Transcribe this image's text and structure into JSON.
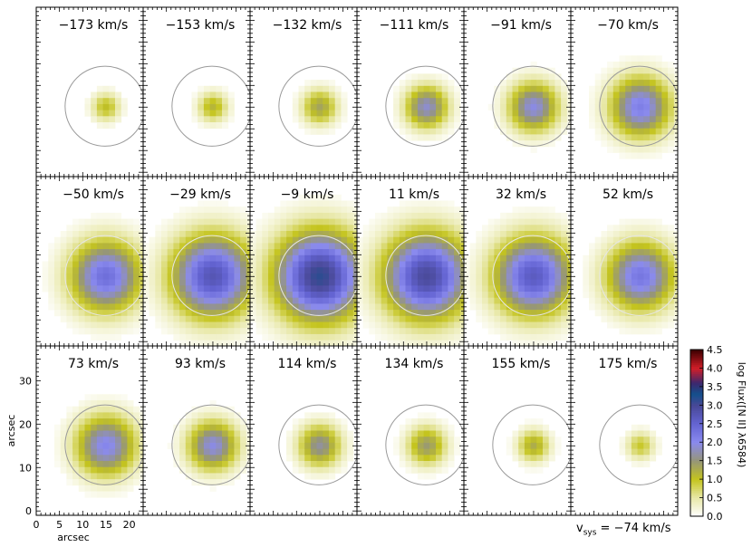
{
  "chart_data": {
    "type": "heatmap",
    "title": "",
    "panel_velocities": [
      "−173 km/s",
      "−153 km/s",
      "−132 km/s",
      "−111 km/s",
      "−91 km/s",
      "−70 km/s",
      "−50 km/s",
      "−29 km/s",
      "−9 km/s",
      "11 km/s",
      "32 km/s",
      "52 km/s",
      "73 km/s",
      "93 km/s",
      "114 km/s",
      "134 km/s",
      "155 km/s",
      "175 km/s"
    ],
    "peak_log_flux": [
      1.1,
      1.2,
      1.4,
      1.9,
      2.0,
      2.2,
      2.4,
      2.8,
      3.2,
      3.0,
      2.7,
      2.3,
      2.1,
      2.0,
      1.7,
      1.5,
      1.3,
      1.0
    ],
    "emission_radius_arcsec": [
      4,
      4.2,
      5,
      6,
      7,
      8.5,
      10,
      11.5,
      12.5,
      12,
      11,
      9.5,
      8.5,
      7,
      6,
      5.5,
      4.5,
      4
    ],
    "center_arcsec": [
      15,
      15
    ],
    "xlabel": "arcsec",
    "ylabel": "arcsec",
    "x_ticks": [
      "0",
      "5",
      "10",
      "15",
      "20"
    ],
    "y_ticks": [
      "0",
      "10",
      "20",
      "30"
    ],
    "xlim": [
      0,
      23
    ],
    "ylim": [
      -1,
      38
    ],
    "colorbar": {
      "label": "log Flux([N II] λ6584)",
      "ticks": [
        "0.0",
        "0.5",
        "1.0",
        "1.5",
        "2.0",
        "2.5",
        "3.0",
        "3.5",
        "4.0",
        "4.5"
      ],
      "range": [
        0,
        4.5
      ]
    },
    "systemic_velocity_prefix": "v",
    "systemic_velocity_subscript": "sys",
    "systemic_velocity_value": " = −74 km/s"
  }
}
